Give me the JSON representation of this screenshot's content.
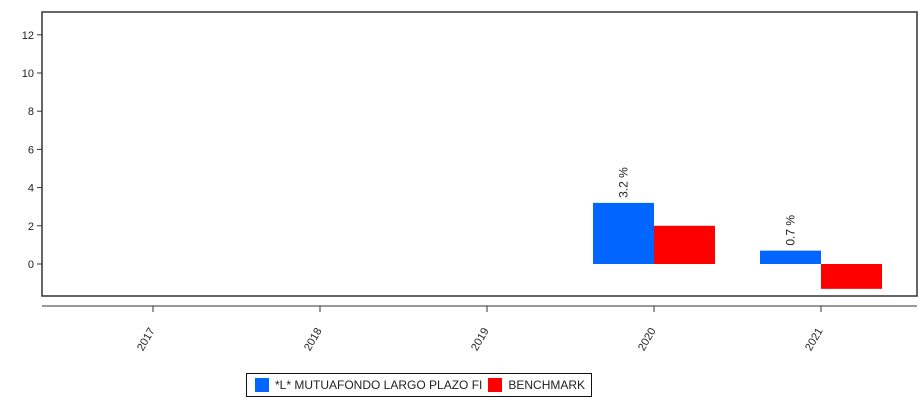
{
  "chart_data": {
    "type": "bar",
    "categories": [
      "2017",
      "2018",
      "2019",
      "2020",
      "2021"
    ],
    "series": [
      {
        "name": "*L* MUTUAFONDO LARGO PLAZO FI",
        "color": "#0066ff",
        "values": [
          null,
          null,
          null,
          3.2,
          0.7
        ]
      },
      {
        "name": "BENCHMARK",
        "color": "#ff0000",
        "values": [
          null,
          null,
          null,
          2.0,
          -1.3
        ]
      }
    ],
    "data_labels": [
      {
        "series": 0,
        "category": "2020",
        "text": "3.2 %"
      },
      {
        "series": 0,
        "category": "2021",
        "text": "0.7 %"
      }
    ],
    "yticks": [
      "0",
      "2",
      "4",
      "6",
      "8",
      "10",
      "12"
    ],
    "ylim": [
      -1.75,
      13
    ],
    "legend_position": "bottom"
  }
}
